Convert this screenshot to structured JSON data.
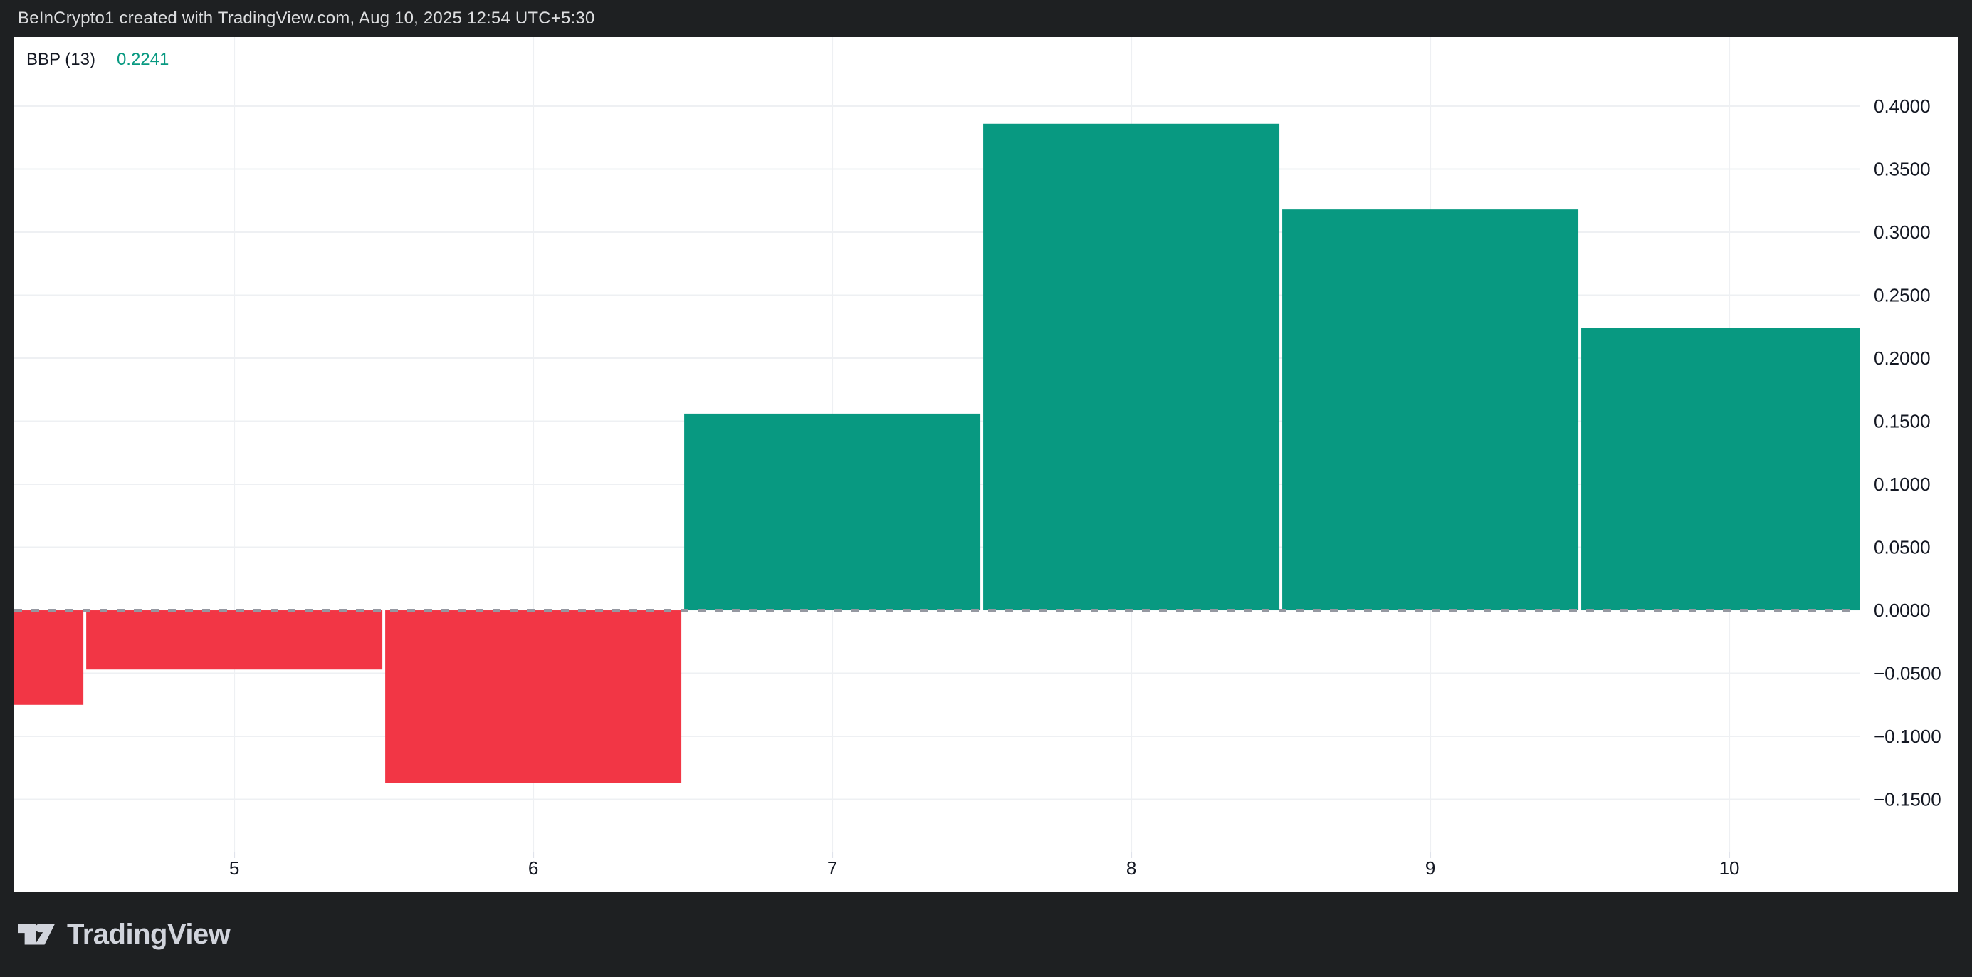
{
  "header": {
    "text": "BeInCrypto1 created with TradingView.com, Aug 10, 2025 12:54 UTC+5:30"
  },
  "legend": {
    "title": "BBP (13)",
    "value": "0.2241"
  },
  "footer": {
    "brand": "TradingView",
    "logo_icon": "tradingview-mark"
  },
  "colors": {
    "positive_bar": "#089981",
    "negative_bar": "#f23645",
    "frame": "#1e2022",
    "pane_background": "#ffffff",
    "grid": "#eef0f3",
    "zero_line": "#9598a1",
    "axis_text": "#131722",
    "axis_tick": "#e0e3eb",
    "header_text": "#dddee0",
    "legend_value": "#089981",
    "logo": "#d1d4dc"
  },
  "chart_data": {
    "type": "bar",
    "title": "BBP (13)",
    "subtitle": "",
    "xlabel": "",
    "ylabel": "",
    "x": [
      4,
      5,
      6,
      7,
      8,
      9,
      10
    ],
    "values": [
      -0.075,
      -0.047,
      -0.137,
      0.156,
      0.386,
      0.318,
      0.2241
    ],
    "last_value": 0.2241,
    "bar_color_positive": "#089981",
    "bar_color_negative": "#f23645",
    "xlim": [
      4.264,
      10.438
    ],
    "ylim": [
      -0.1915,
      0.4548
    ],
    "xticks": {
      "values": [
        5,
        6,
        7,
        8,
        9,
        10
      ],
      "labels": [
        "5",
        "6",
        "7",
        "8",
        "9",
        "10"
      ]
    },
    "yticks": {
      "values": [
        0.4,
        0.35,
        0.3,
        0.25,
        0.2,
        0.15,
        0.1,
        0.05,
        0.0,
        -0.05,
        -0.1,
        -0.15
      ],
      "labels": [
        "0.4000",
        "0.3500",
        "0.3000",
        "0.2500",
        "0.2000",
        "0.1500",
        "0.1000",
        "0.0500",
        "0.0000",
        "−0.0500",
        "−0.1000",
        "−0.1500"
      ]
    },
    "grid": true,
    "zero_line_style": "dashed",
    "legend_position": "top-left",
    "yaxis_position": "right"
  }
}
